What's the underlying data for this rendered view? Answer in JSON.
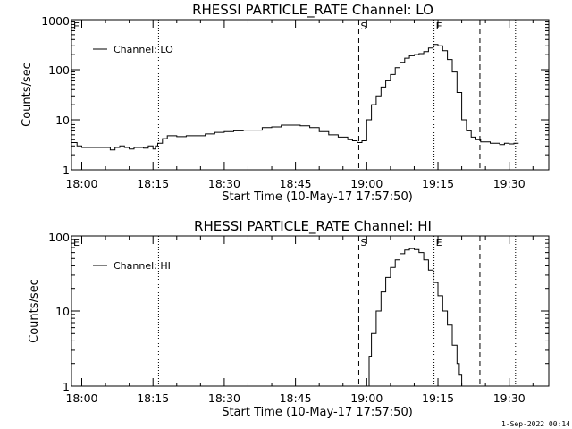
{
  "footer": {
    "stamp": "1-Sep-2022 00:14"
  },
  "chart_data": [
    {
      "type": "line",
      "title": "RHESSI PARTICLE_RATE Channel: LO",
      "xlabel": "Start Time (10-May-17 17:57:50)",
      "ylabel": "Counts/sec",
      "y_scale": "log",
      "ylim": [
        1,
        1000
      ],
      "xlim": [
        "17:57:50",
        "19:38:20"
      ],
      "x_tick_labels": [
        "18:00",
        "18:15",
        "18:30",
        "18:45",
        "19:00",
        "19:15",
        "19:30"
      ],
      "y_tick_labels": [
        "1",
        "10",
        "100",
        "1000"
      ],
      "legend": {
        "position": "top-left",
        "entries": [
          "Channel: LO"
        ]
      },
      "markers": [
        {
          "label": "E",
          "time": "17:57:50",
          "style": "dotted"
        },
        {
          "label": "",
          "time": "18:16:10",
          "style": "dotted"
        },
        {
          "label": "S",
          "time": "18:58:20",
          "style": "dashed"
        },
        {
          "label": "E",
          "time": "19:14:10",
          "style": "dotted"
        },
        {
          "label": "",
          "time": "19:23:50",
          "style": "dashed"
        },
        {
          "label": "",
          "time": "19:31:20",
          "style": "dotted"
        }
      ],
      "series": [
        {
          "name": "Channel: LO",
          "x": [
            "17:57:50",
            "17:59:00",
            "18:00:00",
            "18:01:00",
            "18:02:00",
            "18:03:00",
            "18:04:00",
            "18:05:00",
            "18:06:00",
            "18:07:00",
            "18:08:00",
            "18:09:00",
            "18:10:00",
            "18:11:00",
            "18:12:00",
            "18:13:00",
            "18:14:00",
            "18:15:00",
            "18:15:30",
            "18:16:00",
            "18:17:00",
            "18:18:00",
            "18:20:00",
            "18:22:00",
            "18:24:00",
            "18:26:00",
            "18:28:00",
            "18:30:00",
            "18:32:00",
            "18:34:00",
            "18:36:00",
            "18:38:00",
            "18:40:00",
            "18:42:00",
            "18:44:00",
            "18:46:00",
            "18:48:00",
            "18:50:00",
            "18:52:00",
            "18:54:00",
            "18:56:00",
            "18:57:00",
            "18:58:00",
            "18:59:00",
            "19:00:00",
            "19:01:00",
            "19:02:00",
            "19:03:00",
            "19:04:00",
            "19:05:00",
            "19:06:00",
            "19:07:00",
            "19:08:00",
            "19:09:00",
            "19:10:00",
            "19:11:00",
            "19:12:00",
            "19:13:00",
            "19:14:00",
            "19:15:00",
            "19:16:00",
            "19:17:00",
            "19:18:00",
            "19:19:00",
            "19:20:00",
            "19:21:00",
            "19:22:00",
            "19:23:00",
            "19:24:00",
            "19:25:00",
            "19:26:00",
            "19:27:00",
            "19:28:00",
            "19:29:00",
            "19:30:00",
            "19:31:00",
            "19:32:00"
          ],
          "y": [
            3.5,
            3.0,
            2.8,
            2.8,
            2.8,
            2.8,
            2.8,
            2.8,
            2.5,
            2.8,
            3.0,
            2.8,
            2.6,
            2.8,
            2.8,
            2.7,
            3.0,
            2.6,
            3.0,
            3.4,
            4.2,
            4.8,
            4.6,
            4.8,
            4.8,
            5.2,
            5.6,
            5.8,
            6.0,
            6.2,
            6.2,
            7.0,
            7.2,
            7.8,
            7.8,
            7.6,
            7.0,
            5.8,
            5.0,
            4.5,
            4.0,
            3.8,
            3.5,
            3.8,
            10,
            20,
            30,
            45,
            60,
            80,
            110,
            140,
            170,
            190,
            200,
            210,
            230,
            270,
            320,
            300,
            240,
            160,
            90,
            35,
            10,
            6.0,
            4.5,
            4.0,
            3.6,
            3.6,
            3.4,
            3.4,
            3.2,
            3.4,
            3.3,
            3.4,
            3.4
          ]
        }
      ]
    },
    {
      "type": "line",
      "title": "RHESSI PARTICLE_RATE Channel: HI",
      "xlabel": "Start Time (10-May-17 17:57:50)",
      "ylabel": "Counts/sec",
      "y_scale": "log",
      "ylim": [
        1,
        100
      ],
      "xlim": [
        "17:57:50",
        "19:38:20"
      ],
      "x_tick_labels": [
        "18:00",
        "18:15",
        "18:30",
        "18:45",
        "19:00",
        "19:15",
        "19:30"
      ],
      "y_tick_labels": [
        "1",
        "10",
        "100"
      ],
      "legend": {
        "position": "top-left",
        "entries": [
          "Channel: HI"
        ]
      },
      "markers": [
        {
          "label": "E",
          "time": "17:57:50",
          "style": "dotted"
        },
        {
          "label": "",
          "time": "18:16:10",
          "style": "dotted"
        },
        {
          "label": "S",
          "time": "18:58:20",
          "style": "dashed"
        },
        {
          "label": "E",
          "time": "19:14:10",
          "style": "dotted"
        },
        {
          "label": "",
          "time": "19:23:50",
          "style": "dashed"
        },
        {
          "label": "",
          "time": "19:31:20",
          "style": "dotted"
        }
      ],
      "series": [
        {
          "name": "Channel: HI",
          "x": [
            "19:00:00",
            "19:00:30",
            "19:01:00",
            "19:02:00",
            "19:03:00",
            "19:04:00",
            "19:05:00",
            "19:06:00",
            "19:07:00",
            "19:08:00",
            "19:09:00",
            "19:10:00",
            "19:11:00",
            "19:12:00",
            "19:13:00",
            "19:14:00",
            "19:15:00",
            "19:16:00",
            "19:17:00",
            "19:18:00",
            "19:19:00",
            "19:19:30",
            "19:20:00"
          ],
          "y": [
            1.0,
            2.5,
            5.0,
            10,
            18,
            28,
            38,
            48,
            58,
            65,
            68,
            66,
            60,
            48,
            35,
            24,
            16,
            10,
            6.5,
            3.5,
            2.0,
            1.4,
            1.0
          ]
        }
      ]
    }
  ]
}
